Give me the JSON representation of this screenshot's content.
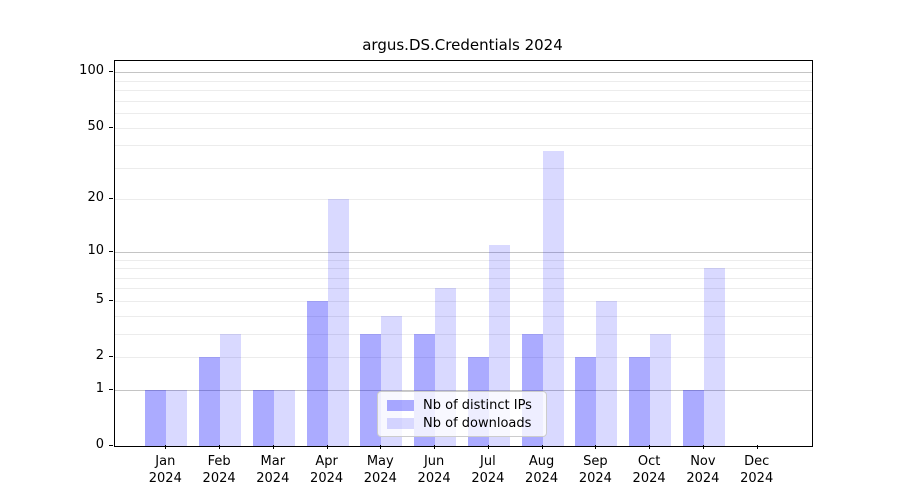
{
  "title": "argus.DS.Credentials 2024",
  "legend": {
    "items": [
      {
        "label": "Nb of distinct IPs",
        "color": "rgba(0,0,255,0.33)"
      },
      {
        "label": "Nb of downloads",
        "color": "rgba(0,0,255,0.15)"
      }
    ]
  },
  "chart_data": {
    "type": "bar",
    "title": "argus.DS.Credentials 2024",
    "months": [
      "Jan",
      "Feb",
      "Mar",
      "Apr",
      "May",
      "Jun",
      "Jul",
      "Aug",
      "Sep",
      "Oct",
      "Nov",
      "Dec"
    ],
    "year": "2024",
    "series": [
      {
        "name": "Nb of distinct IPs",
        "color": "rgba(0,0,255,0.33)",
        "values": [
          1,
          2,
          1,
          5,
          3,
          3,
          2,
          3,
          2,
          2,
          1,
          0
        ]
      },
      {
        "name": "Nb of downloads",
        "color": "rgba(0,0,255,0.15)",
        "values": [
          1,
          3,
          1,
          20,
          4,
          6,
          11,
          37,
          5,
          3,
          8,
          0
        ]
      }
    ],
    "y_axis": {
      "scale": "log10(1+x)",
      "ticks": [
        0,
        1,
        2,
        5,
        10,
        20,
        50,
        100
      ],
      "max": 114,
      "major_grid": [
        1,
        10,
        100
      ],
      "minor_grid": [
        2,
        3,
        4,
        5,
        6,
        7,
        8,
        9,
        20,
        30,
        40,
        50,
        60,
        70,
        80,
        90
      ]
    },
    "grid": "horizontal",
    "legend_position": "lower center",
    "bar_color_dark_rendered": "#aaaaff",
    "bar_color_light_rendered": "#d9d9ff"
  }
}
